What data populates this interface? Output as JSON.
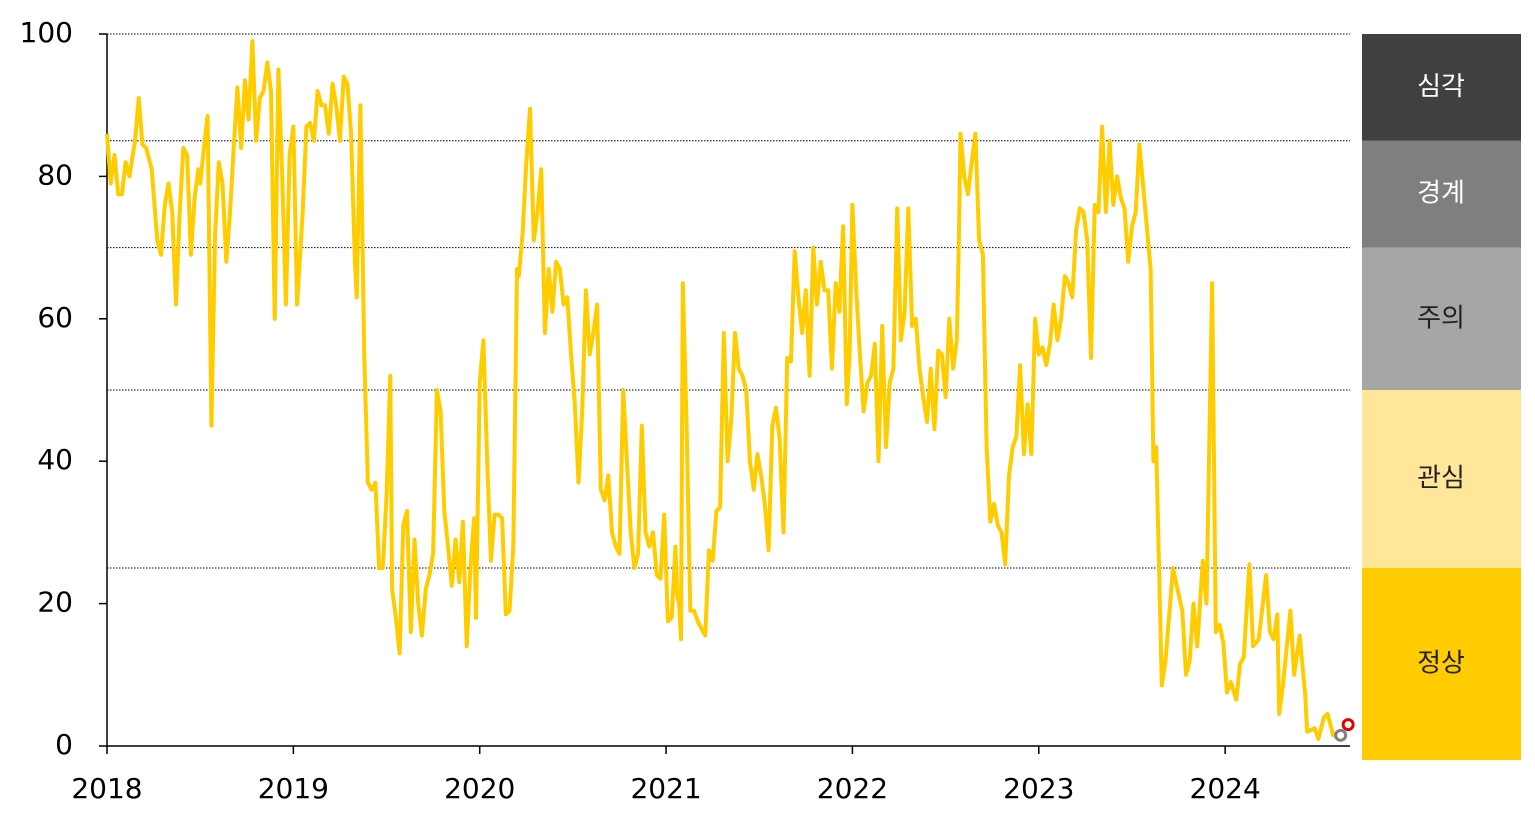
{
  "chart_data": {
    "type": "line",
    "x": [
      2018.0,
      2018.02,
      2018.04,
      2018.06,
      2018.08,
      2018.1,
      2018.12,
      2018.15,
      2018.17,
      2018.19,
      2018.21,
      2018.24,
      2018.27,
      2018.29,
      2018.31,
      2018.33,
      2018.35,
      2018.37,
      2018.39,
      2018.41,
      2018.43,
      2018.45,
      2018.47,
      2018.49,
      2018.5,
      2018.52,
      2018.54,
      2018.56,
      2018.58,
      2018.6,
      2018.62,
      2018.64,
      2018.66,
      2018.68,
      2018.7,
      2018.72,
      2018.74,
      2018.76,
      2018.78,
      2018.8,
      2018.82,
      2018.84,
      2018.86,
      2018.88,
      2018.9,
      2018.92,
      2018.94,
      2018.96,
      2018.98,
      2019.0,
      2019.02,
      2019.05,
      2019.07,
      2019.09,
      2019.11,
      2019.13,
      2019.15,
      2019.17,
      2019.19,
      2019.21,
      2019.23,
      2019.25,
      2019.27,
      2019.29,
      2019.31,
      2019.33,
      2019.34,
      2019.36,
      2019.38,
      2019.4,
      2019.42,
      2019.44,
      2019.46,
      2019.48,
      2019.5,
      2019.52,
      2019.53,
      2019.55,
      2019.57,
      2019.59,
      2019.61,
      2019.63,
      2019.65,
      2019.67,
      2019.69,
      2019.71,
      2019.73,
      2019.75,
      2019.77,
      2019.79,
      2019.81,
      2019.83,
      2019.85,
      2019.87,
      2019.89,
      2019.91,
      2019.93,
      2019.95,
      2019.97,
      2019.98,
      2020.0,
      2020.02,
      2020.04,
      2020.06,
      2020.08,
      2020.1,
      2020.12,
      2020.14,
      2020.16,
      2020.18,
      2020.2,
      2020.21,
      2020.23,
      2020.25,
      2020.27,
      2020.29,
      2020.31,
      2020.33,
      2020.35,
      2020.37,
      2020.39,
      2020.41,
      2020.43,
      2020.45,
      2020.47,
      2020.49,
      2020.51,
      2020.53,
      2020.55,
      2020.57,
      2020.59,
      2020.61,
      2020.63,
      2020.65,
      2020.67,
      2020.69,
      2020.71,
      2020.73,
      2020.75,
      2020.77,
      2020.79,
      2020.81,
      2020.83,
      2020.85,
      2020.87,
      2020.89,
      2020.91,
      2020.93,
      2020.95,
      2020.97,
      2020.99,
      2021.01,
      2021.03,
      2021.05,
      2021.06,
      2021.07,
      2021.08,
      2021.09,
      2021.11,
      2021.13,
      2021.15,
      2021.17,
      2021.19,
      2021.21,
      2021.23,
      2021.25,
      2021.27,
      2021.29,
      2021.31,
      2021.33,
      2021.35,
      2021.37,
      2021.39,
      2021.41,
      2021.43,
      2021.45,
      2021.47,
      2021.49,
      2021.51,
      2021.53,
      2021.55,
      2021.57,
      2021.59,
      2021.61,
      2021.63,
      2021.65,
      2021.67,
      2021.69,
      2021.71,
      2021.73,
      2021.75,
      2021.77,
      2021.79,
      2021.81,
      2021.83,
      2021.85,
      2021.87,
      2021.89,
      2021.91,
      2021.93,
      2021.94,
      2021.95,
      2021.97,
      2021.985,
      2022.0,
      2022.02,
      2022.04,
      2022.06,
      2022.08,
      2022.1,
      2022.12,
      2022.14,
      2022.16,
      2022.18,
      2022.2,
      2022.22,
      2022.24,
      2022.26,
      2022.28,
      2022.3,
      2022.32,
      2022.34,
      2022.36,
      2022.38,
      2022.4,
      2022.42,
      2022.44,
      2022.46,
      2022.48,
      2022.5,
      2022.52,
      2022.54,
      2022.56,
      2022.57,
      2022.58,
      2022.6,
      2022.62,
      2022.64,
      2022.66,
      2022.68,
      2022.7,
      2022.72,
      2022.74,
      2022.76,
      2022.78,
      2022.8,
      2022.82,
      2022.84,
      2022.86,
      2022.88,
      2022.9,
      2022.92,
      2022.94,
      2022.96,
      2022.98,
      2023.0,
      2023.02,
      2023.04,
      2023.06,
      2023.08,
      2023.1,
      2023.12,
      2023.14,
      2023.16,
      2023.18,
      2023.2,
      2023.22,
      2023.24,
      2023.26,
      2023.28,
      2023.3,
      2023.32,
      2023.34,
      2023.36,
      2023.38,
      2023.4,
      2023.42,
      2023.44,
      2023.46,
      2023.48,
      2023.5,
      2023.52,
      2023.54,
      2023.6,
      2023.615,
      2023.63,
      2023.66,
      2023.68,
      2023.72,
      2023.74,
      2023.77,
      2023.79,
      2023.81,
      2023.83,
      2023.85,
      2023.88,
      2023.9,
      2023.93,
      2023.95,
      2023.97,
      2023.99,
      2024.01,
      2024.03,
      2024.06,
      2024.08,
      2024.1,
      2024.13,
      2024.15,
      2024.18,
      2024.22,
      2024.24,
      2024.26,
      2024.28,
      2024.29,
      2024.31,
      2024.35,
      2024.37,
      2024.4,
      2024.43,
      2024.44,
      2024.48,
      2024.5,
      2024.53,
      2024.55,
      2024.58,
      2024.61
    ],
    "series": [
      {
        "color": "#ffcc00",
        "values": [
          86,
          79,
          83,
          77.5,
          77.5,
          82,
          80,
          85,
          91,
          84.5,
          84,
          81,
          71,
          69,
          76,
          79,
          75,
          62,
          75,
          84,
          83,
          69,
          77,
          81,
          79,
          84,
          88.5,
          45,
          72,
          82,
          79,
          68,
          75,
          84,
          92.5,
          84,
          93.5,
          88,
          99,
          85,
          91,
          92,
          96,
          92,
          60,
          95,
          80,
          62,
          83,
          87,
          62,
          75,
          87,
          87.5,
          85,
          92,
          90,
          90,
          86,
          93,
          90,
          85,
          94,
          93,
          86,
          68,
          63,
          90,
          55,
          37,
          36,
          37,
          25,
          25,
          35,
          52,
          22,
          18,
          13,
          31,
          33,
          16,
          29,
          20,
          15.5,
          22,
          24,
          27,
          50,
          47,
          33,
          28,
          22.5,
          29,
          23,
          31.5,
          14,
          25,
          32,
          18,
          51,
          57,
          40,
          26,
          32.5,
          32.5,
          32,
          18.5,
          19,
          28,
          67,
          66,
          72,
          82,
          89.5,
          71,
          75,
          81,
          58,
          67,
          61,
          68,
          67,
          62,
          63,
          55,
          48,
          37,
          47,
          64,
          55,
          58,
          62,
          36,
          34.5,
          38,
          30,
          28,
          27,
          50,
          40,
          30,
          25,
          27,
          45,
          30,
          28,
          30,
          24,
          23.5,
          32.5,
          17.5,
          18,
          28,
          21,
          20,
          15,
          65,
          45,
          19,
          19,
          17.5,
          16.5,
          15.5,
          27.5,
          26,
          33,
          33.5,
          58,
          40,
          46,
          58,
          53,
          52,
          50,
          40,
          36,
          41,
          38,
          34,
          27.5,
          45,
          47.5,
          43,
          30,
          54.5,
          54,
          69.5,
          63,
          58,
          64,
          52,
          70,
          62,
          68,
          64,
          64,
          53,
          65,
          61,
          67,
          73,
          48,
          55,
          76,
          64,
          55,
          47,
          51,
          52,
          56.5,
          40,
          59,
          42,
          51,
          53,
          75.5,
          57,
          61,
          75.5,
          59,
          60,
          53,
          49,
          45.5,
          53,
          44.5,
          55.5,
          55,
          49,
          60,
          53,
          57,
          70,
          86,
          80,
          77.5,
          82,
          86,
          71,
          69,
          42,
          31.5,
          34,
          31,
          30,
          25.5,
          38,
          42,
          43.5,
          53.5,
          41,
          48,
          41,
          60,
          55,
          56,
          53.5,
          56.5,
          62,
          57,
          60,
          66,
          65,
          63,
          72.5,
          75.5,
          75,
          71,
          54.5,
          76,
          75,
          87,
          75,
          85,
          76,
          80,
          77,
          75.5,
          68,
          73,
          75,
          84.5,
          67,
          40,
          42,
          8.5,
          12,
          25,
          22.5,
          19,
          10,
          12,
          20,
          14,
          26,
          20,
          65,
          16,
          17,
          14.5,
          7.5,
          9,
          6.5,
          11.5,
          12.5,
          25.5,
          14,
          15,
          24,
          16,
          15,
          18.5,
          4.5,
          8.5,
          19,
          10,
          15.5,
          7,
          2,
          2.5,
          1,
          4,
          4.5,
          1.5,
          1.5
        ]
      }
    ],
    "highlights": [
      {
        "x": 2024.62,
        "y": 1.5,
        "color": "#808080"
      },
      {
        "x": 2024.66,
        "y": 3,
        "color": "#e00000"
      }
    ],
    "xlim": [
      2018,
      2024.67
    ],
    "xticks": [
      2018,
      2019,
      2020,
      2021,
      2022,
      2023,
      2024
    ],
    "ylim": [
      0,
      100
    ],
    "yticks": [
      0,
      20,
      40,
      60,
      80,
      100
    ],
    "bands": [
      {
        "label": "정상",
        "from": 0,
        "to": 25,
        "color": "#ffcc00",
        "text_color": "#222222"
      },
      {
        "label": "관심",
        "from": 25,
        "to": 50,
        "color": "#ffe699",
        "text_color": "#222222"
      },
      {
        "label": "주의",
        "from": 50,
        "to": 70,
        "color": "#a6a6a6",
        "text_color": "#222222"
      },
      {
        "label": "경계",
        "from": 70,
        "to": 85,
        "color": "#7f7f7f",
        "text_color": "#ffffff"
      },
      {
        "label": "심각",
        "from": 85,
        "to": 100,
        "color": "#404040",
        "text_color": "#ffffff"
      }
    ]
  }
}
